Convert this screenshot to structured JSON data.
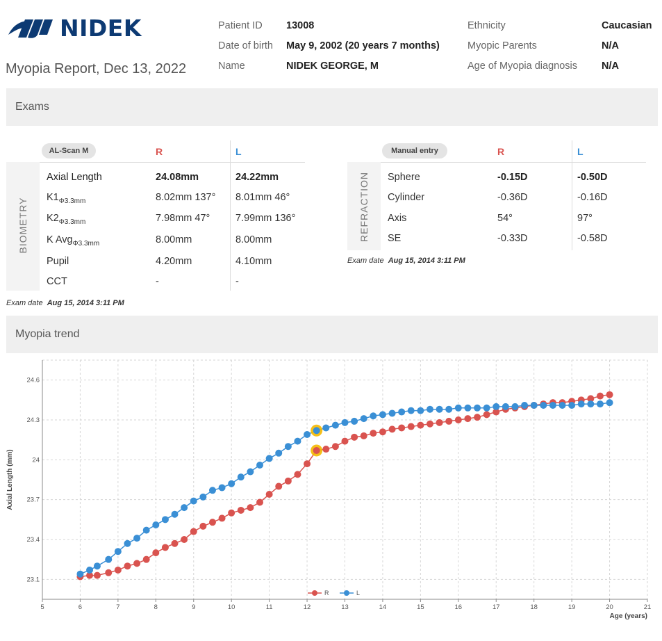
{
  "brand": {
    "logo_text": "NIDEK"
  },
  "report": {
    "title": "Myopia Report, Dec 13, 2022"
  },
  "patient": {
    "id_label": "Patient ID",
    "id_value": "13008",
    "dob_label": "Date of birth",
    "dob_value": "May 9, 2002 (20 years 7 months)",
    "name_label": "Name",
    "name_value": "NIDEK GEORGE, M",
    "ethnicity_label": "Ethnicity",
    "ethnicity_value": "Caucasian",
    "parents_label": "Myopic Parents",
    "parents_value": "N/A",
    "age_dx_label": "Age of Myopia diagnosis",
    "age_dx_value": "N/A"
  },
  "sections": {
    "exams": "Exams",
    "trend": "Myopia trend"
  },
  "biometry": {
    "pill": "AL-Scan M",
    "col_r": "R",
    "col_l": "L",
    "side_label": "BIOMETRY",
    "rows": [
      {
        "label": "Axial Length",
        "sub": "",
        "r": "24.08mm",
        "l": "24.22mm"
      },
      {
        "label": "K1",
        "sub": "Φ3.3mm",
        "r": "8.02mm 137°",
        "l": "8.01mm 46°"
      },
      {
        "label": "K2",
        "sub": "Φ3.3mm",
        "r": "7.98mm 47°",
        "l": "7.99mm 136°"
      },
      {
        "label": "K Avg",
        "sub": "Φ3.3mm",
        "r": "8.00mm",
        "l": "8.00mm"
      },
      {
        "label": "Pupil",
        "sub": "",
        "r": "4.20mm",
        "l": "4.10mm"
      },
      {
        "label": "CCT",
        "sub": "",
        "r": "-",
        "l": "-"
      }
    ],
    "exam_date_label": "Exam date",
    "exam_date_value": "Aug 15, 2014 3:11 PM"
  },
  "refraction": {
    "pill": "Manual entry",
    "col_r": "R",
    "col_l": "L",
    "side_label": "REFRACTION",
    "rows": [
      {
        "label": "Sphere",
        "r": "-0.15D",
        "l": "-0.50D"
      },
      {
        "label": "Cylinder",
        "r": "-0.36D",
        "l": "-0.16D"
      },
      {
        "label": "Axis",
        "r": "54°",
        "l": "97°"
      },
      {
        "label": "SE",
        "r": "-0.33D",
        "l": "-0.58D"
      }
    ],
    "exam_date_label": "Exam date",
    "exam_date_value": "Aug 15, 2014 3:11 PM"
  },
  "colors": {
    "r": "#d9534f",
    "l": "#3a8fd5",
    "highlight": "#f5b800"
  },
  "chart_data": {
    "type": "line",
    "xlabel": "Age (years)",
    "ylabel": "Axial Length (mm)",
    "xlim": [
      5,
      21
    ],
    "ylim": [
      22.95,
      24.75
    ],
    "x_ticks": [
      5,
      6,
      7,
      8,
      9,
      10,
      11,
      12,
      13,
      14,
      15,
      16,
      17,
      18,
      19,
      20,
      21
    ],
    "y_ticks": [
      23.1,
      23.4,
      23.7,
      24,
      24.3,
      24.6
    ],
    "y_tick_labels": [
      "23.1",
      "23.4",
      "23.7",
      "24",
      "24.3",
      "24.6"
    ],
    "grid": true,
    "legend": "bottom-center",
    "highlight_x": 12.25,
    "series": [
      {
        "name": "R",
        "x": [
          6.0,
          6.25,
          6.45,
          6.75,
          7.0,
          7.25,
          7.5,
          7.75,
          8.0,
          8.25,
          8.5,
          8.75,
          9.0,
          9.25,
          9.5,
          9.75,
          10.0,
          10.25,
          10.5,
          10.75,
          11.0,
          11.25,
          11.5,
          11.75,
          12.0,
          12.25,
          12.5,
          12.75,
          13.0,
          13.25,
          13.5,
          13.75,
          14.0,
          14.25,
          14.5,
          14.75,
          15.0,
          15.25,
          15.5,
          15.75,
          16.0,
          16.25,
          16.5,
          16.75,
          17.0,
          17.25,
          17.5,
          17.75,
          18.0,
          18.25,
          18.5,
          18.75,
          19.0,
          19.25,
          19.5,
          19.75,
          20.0
        ],
        "values": [
          23.12,
          23.13,
          23.13,
          23.15,
          23.17,
          23.2,
          23.22,
          23.25,
          23.3,
          23.34,
          23.37,
          23.4,
          23.46,
          23.5,
          23.53,
          23.56,
          23.6,
          23.62,
          23.64,
          23.68,
          23.74,
          23.8,
          23.84,
          23.89,
          23.97,
          24.07,
          24.08,
          24.1,
          24.14,
          24.17,
          24.18,
          24.2,
          24.21,
          24.23,
          24.24,
          24.25,
          24.26,
          24.27,
          24.28,
          24.29,
          24.3,
          24.31,
          24.32,
          24.34,
          24.36,
          24.38,
          24.39,
          24.4,
          24.41,
          24.42,
          24.43,
          24.43,
          24.44,
          24.45,
          24.46,
          24.48,
          24.49
        ]
      },
      {
        "name": "L",
        "x": [
          6.0,
          6.25,
          6.45,
          6.75,
          7.0,
          7.25,
          7.5,
          7.75,
          8.0,
          8.25,
          8.5,
          8.75,
          9.0,
          9.25,
          9.5,
          9.75,
          10.0,
          10.25,
          10.5,
          10.75,
          11.0,
          11.25,
          11.5,
          11.75,
          12.0,
          12.25,
          12.5,
          12.75,
          13.0,
          13.25,
          13.5,
          13.75,
          14.0,
          14.25,
          14.5,
          14.75,
          15.0,
          15.25,
          15.5,
          15.75,
          16.0,
          16.25,
          16.5,
          16.75,
          17.0,
          17.25,
          17.5,
          17.75,
          18.0,
          18.25,
          18.5,
          18.75,
          19.0,
          19.25,
          19.5,
          19.75,
          20.0
        ],
        "values": [
          23.14,
          23.17,
          23.2,
          23.25,
          23.31,
          23.37,
          23.41,
          23.47,
          23.51,
          23.55,
          23.59,
          23.64,
          23.69,
          23.72,
          23.77,
          23.79,
          23.82,
          23.87,
          23.91,
          23.96,
          24.01,
          24.05,
          24.1,
          24.14,
          24.19,
          24.22,
          24.24,
          24.26,
          24.28,
          24.29,
          24.31,
          24.33,
          24.34,
          24.35,
          24.36,
          24.37,
          24.37,
          24.38,
          24.38,
          24.38,
          24.39,
          24.39,
          24.39,
          24.39,
          24.4,
          24.4,
          24.4,
          24.41,
          24.41,
          24.41,
          24.41,
          24.41,
          24.41,
          24.42,
          24.42,
          24.42,
          24.43
        ]
      }
    ]
  }
}
